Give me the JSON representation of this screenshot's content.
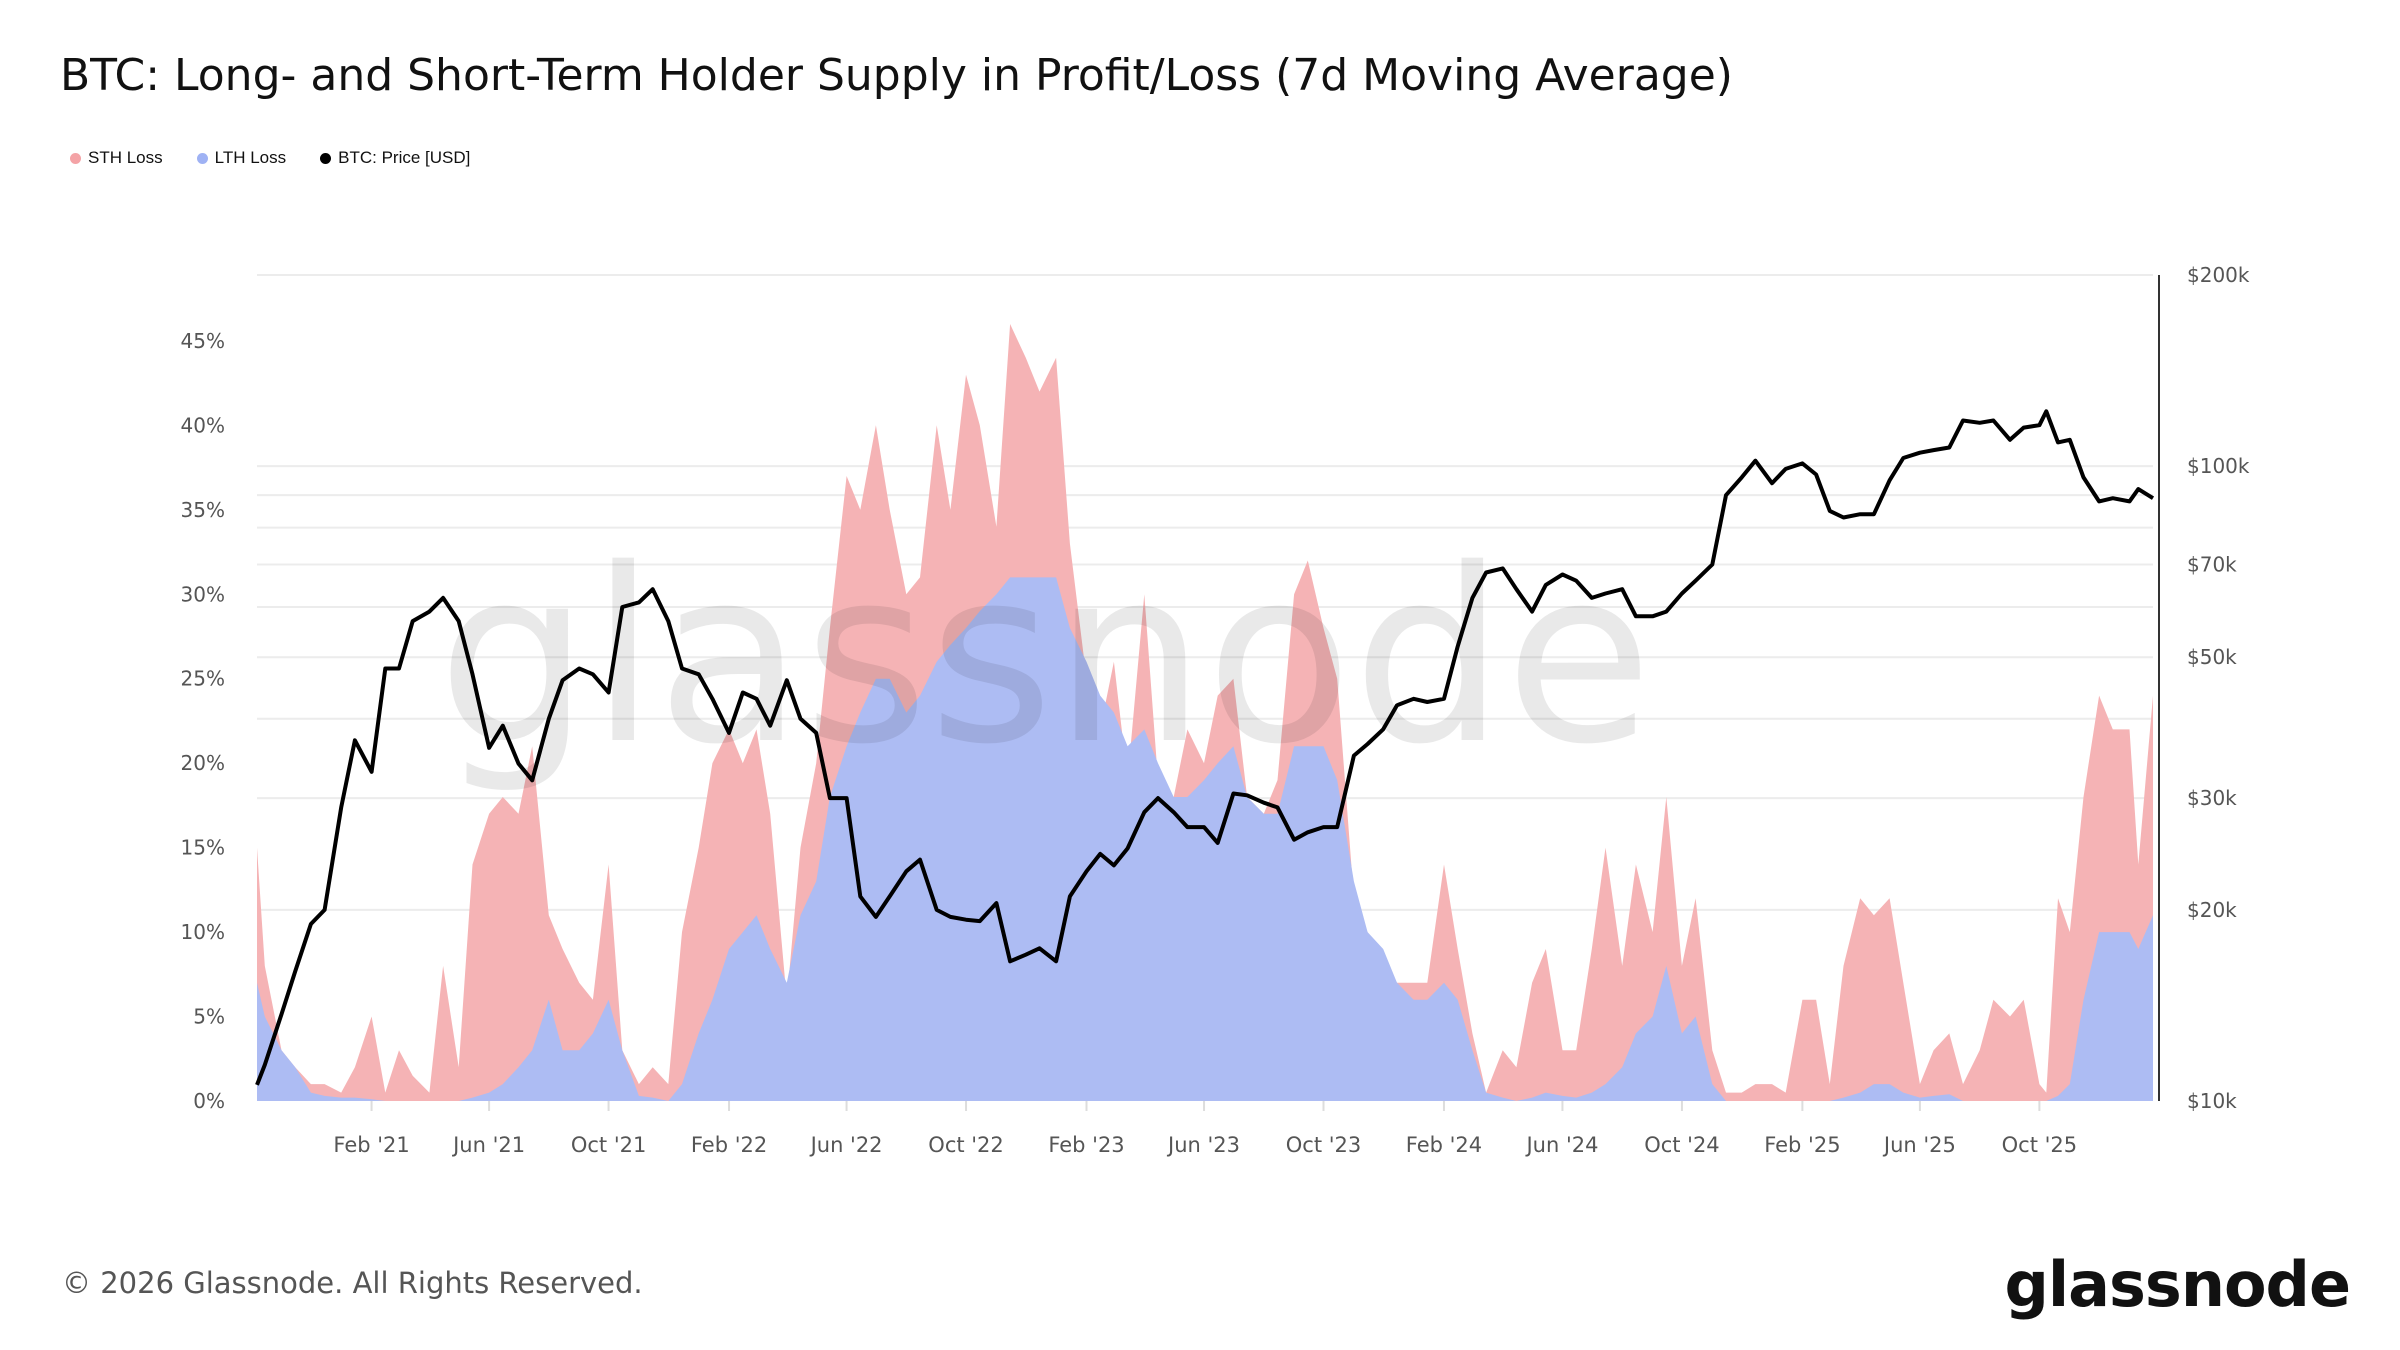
{
  "title": "BTC: Long- and Short-Term Holder Supply in Profit/Loss (7d Moving Average)",
  "legend": [
    {
      "label": "STH Loss",
      "color": "#f4a3a6"
    },
    {
      "label": "LTH Loss",
      "color": "#9fb2f4"
    },
    {
      "label": "BTC: Price [USD]",
      "color": "#000000"
    }
  ],
  "footer": "© 2026 Glassnode. All Rights Reserved.",
  "logo": "glassnode",
  "watermark": "glassnode",
  "chart_data": {
    "type": "area",
    "title": "BTC: Long- and Short-Term Holder Supply in Profit/Loss (7d Moving Average)",
    "x_range": [
      "2020-10-07",
      "2026-01-25"
    ],
    "x_ticks": [
      {
        "date": "2021-02-01",
        "label": "Feb '21"
      },
      {
        "date": "2021-06-01",
        "label": "Jun '21"
      },
      {
        "date": "2021-10-01",
        "label": "Oct '21"
      },
      {
        "date": "2022-02-01",
        "label": "Feb '22"
      },
      {
        "date": "2022-06-01",
        "label": "Jun '22"
      },
      {
        "date": "2022-10-01",
        "label": "Oct '22"
      },
      {
        "date": "2023-02-01",
        "label": "Feb '23"
      },
      {
        "date": "2023-06-01",
        "label": "Jun '23"
      },
      {
        "date": "2023-10-01",
        "label": "Oct '23"
      },
      {
        "date": "2024-02-01",
        "label": "Feb '24"
      },
      {
        "date": "2024-06-01",
        "label": "Jun '24"
      },
      {
        "date": "2024-10-01",
        "label": "Oct '24"
      },
      {
        "date": "2025-02-01",
        "label": "Feb '25"
      },
      {
        "date": "2025-06-01",
        "label": "Jun '25"
      },
      {
        "date": "2025-10-01",
        "label": "Oct '25"
      }
    ],
    "y_left": {
      "scale": "linear",
      "range": [
        0,
        48.9
      ],
      "ticks": [
        0,
        5,
        10,
        15,
        20,
        25,
        30,
        35,
        40,
        45
      ],
      "tick_labels": [
        "0%",
        "5%",
        "10%",
        "15%",
        "20%",
        "25%",
        "30%",
        "35%",
        "40%",
        "45%"
      ]
    },
    "y_right": {
      "scale": "log",
      "range": [
        10000,
        200000
      ],
      "ticks": [
        10000,
        20000,
        30000,
        50000,
        70000,
        100000,
        200000
      ],
      "tick_labels": [
        "$10k",
        "$20k",
        "$30k",
        "$50k",
        "$70k",
        "$100k",
        "$200k"
      ],
      "grid": [
        20000,
        30000,
        40000,
        50000,
        60000,
        70000,
        80000,
        90000,
        100000,
        200000
      ]
    },
    "grid": true,
    "legend_position": "top-left",
    "x": [
      "2020-10-07",
      "2020-10-15",
      "2020-11-01",
      "2020-11-15",
      "2020-12-01",
      "2020-12-15",
      "2021-01-01",
      "2021-01-15",
      "2021-02-01",
      "2021-02-15",
      "2021-03-01",
      "2021-03-15",
      "2021-04-01",
      "2021-04-15",
      "2021-05-01",
      "2021-05-15",
      "2021-06-01",
      "2021-06-15",
      "2021-07-01",
      "2021-07-15",
      "2021-08-01",
      "2021-08-15",
      "2021-09-01",
      "2021-09-15",
      "2021-10-01",
      "2021-10-15",
      "2021-11-01",
      "2021-11-15",
      "2021-12-01",
      "2021-12-15",
      "2022-01-01",
      "2022-01-15",
      "2022-02-01",
      "2022-02-15",
      "2022-03-01",
      "2022-03-15",
      "2022-04-01",
      "2022-04-15",
      "2022-05-01",
      "2022-05-15",
      "2022-06-01",
      "2022-06-15",
      "2022-07-01",
      "2022-07-15",
      "2022-08-01",
      "2022-08-15",
      "2022-09-01",
      "2022-09-15",
      "2022-10-01",
      "2022-10-15",
      "2022-11-01",
      "2022-11-15",
      "2022-12-01",
      "2022-12-15",
      "2023-01-01",
      "2023-01-15",
      "2023-02-01",
      "2023-02-15",
      "2023-03-01",
      "2023-03-15",
      "2023-04-01",
      "2023-04-15",
      "2023-05-01",
      "2023-05-15",
      "2023-06-01",
      "2023-06-15",
      "2023-07-01",
      "2023-07-15",
      "2023-08-01",
      "2023-08-15",
      "2023-09-01",
      "2023-09-15",
      "2023-10-01",
      "2023-10-15",
      "2023-11-01",
      "2023-11-15",
      "2023-12-01",
      "2023-12-15",
      "2024-01-01",
      "2024-01-15",
      "2024-02-01",
      "2024-02-15",
      "2024-03-01",
      "2024-03-15",
      "2024-04-01",
      "2024-04-15",
      "2024-05-01",
      "2024-05-15",
      "2024-06-01",
      "2024-06-15",
      "2024-07-01",
      "2024-07-15",
      "2024-08-01",
      "2024-08-15",
      "2024-09-01",
      "2024-09-15",
      "2024-10-01",
      "2024-10-15",
      "2024-11-01",
      "2024-11-15",
      "2024-12-01",
      "2024-12-15",
      "2025-01-01",
      "2025-01-15",
      "2025-02-01",
      "2025-02-15",
      "2025-03-01",
      "2025-03-15",
      "2025-04-01",
      "2025-04-15",
      "2025-05-01",
      "2025-05-15",
      "2025-06-01",
      "2025-06-15",
      "2025-07-01",
      "2025-07-15",
      "2025-08-01",
      "2025-08-15",
      "2025-09-01",
      "2025-09-15",
      "2025-10-01",
      "2025-10-08",
      "2025-10-20",
      "2025-11-01",
      "2025-11-15",
      "2025-12-01",
      "2025-12-15",
      "2026-01-01",
      "2026-01-10",
      "2026-01-25"
    ],
    "series": [
      {
        "name": "STH Loss",
        "axis": "left",
        "unit": "%",
        "color": "#f5b3b5",
        "values": [
          15,
          8,
          3,
          2,
          1,
          1,
          0.5,
          2,
          5,
          0.5,
          3,
          1.5,
          0.5,
          8,
          2,
          14,
          17,
          18,
          17,
          21,
          11,
          9,
          7,
          6,
          14,
          3,
          1,
          2,
          1,
          10,
          15,
          20,
          22,
          20,
          22,
          17,
          6,
          15,
          20,
          28,
          37,
          35,
          40,
          35,
          30,
          31,
          40,
          35,
          43,
          40,
          34,
          46,
          44,
          42,
          44,
          33,
          25,
          22,
          26,
          19,
          30,
          19,
          18,
          22,
          20,
          24,
          25,
          18,
          17,
          19,
          30,
          32,
          28,
          25,
          12,
          10,
          8,
          7,
          7,
          7,
          14,
          9,
          4,
          0.5,
          3,
          2,
          7,
          9,
          3,
          3,
          9,
          15,
          8,
          14,
          10,
          18,
          8,
          12,
          3,
          0.5,
          0.5,
          1,
          1,
          0.5,
          6,
          6,
          1,
          8,
          12,
          11,
          12,
          7,
          1,
          3,
          4,
          1,
          3,
          6,
          5,
          6,
          1,
          0.5,
          12,
          10,
          18,
          24,
          22,
          22,
          14,
          24
        ]
      },
      {
        "name": "LTH Loss",
        "axis": "left",
        "unit": "%",
        "color": "#adbcf3",
        "values": [
          7,
          5,
          3,
          2,
          0.5,
          0.3,
          0.2,
          0.2,
          0.1,
          0,
          0,
          0,
          0,
          0,
          0,
          0.2,
          0.5,
          1,
          2,
          3,
          6,
          3,
          3,
          4,
          6,
          3,
          0.3,
          0.2,
          0,
          1,
          4,
          6,
          9,
          10,
          11,
          9,
          7,
          11,
          13,
          18,
          21,
          23,
          25,
          25,
          23,
          24,
          26,
          27,
          28,
          29,
          30,
          31,
          31,
          31,
          31,
          28,
          26,
          24,
          23,
          21,
          22,
          20,
          18,
          18,
          19,
          20,
          21,
          18,
          17,
          17,
          21,
          21,
          21,
          19,
          13,
          10,
          9,
          7,
          6,
          6,
          7,
          6,
          3,
          0.5,
          0.2,
          0,
          0.2,
          0.5,
          0.3,
          0.2,
          0.5,
          1,
          2,
          4,
          5,
          8,
          4,
          5,
          1,
          0,
          0,
          0,
          0,
          0,
          0,
          0,
          0,
          0.2,
          0.5,
          1,
          1,
          0.5,
          0.2,
          0.3,
          0.4,
          0,
          0,
          0,
          0,
          0,
          0,
          0,
          0.3,
          1,
          6,
          10,
          10,
          10,
          9,
          11
        ]
      },
      {
        "name": "BTC: Price [USD]",
        "axis": "right",
        "unit": "USD",
        "color": "#000000",
        "values": [
          10600,
          11400,
          13700,
          16000,
          19000,
          20000,
          29000,
          37000,
          33000,
          48000,
          48000,
          57000,
          59000,
          62000,
          57000,
          47000,
          36000,
          39000,
          34000,
          32000,
          40000,
          46000,
          48000,
          47000,
          44000,
          60000,
          61000,
          64000,
          57000,
          48000,
          47000,
          43000,
          38000,
          44000,
          43000,
          39000,
          46000,
          40000,
          38000,
          30000,
          30000,
          21000,
          19500,
          21000,
          23000,
          24000,
          20000,
          19500,
          19300,
          19200,
          20500,
          16600,
          17000,
          17400,
          16600,
          21000,
          23000,
          24500,
          23500,
          25000,
          28500,
          30000,
          28500,
          27000,
          27000,
          25500,
          30500,
          30300,
          29500,
          29000,
          25800,
          26500,
          27000,
          27000,
          35000,
          36500,
          38500,
          42000,
          43000,
          42500,
          43000,
          52000,
          62000,
          68000,
          69000,
          64000,
          59000,
          65000,
          67500,
          66000,
          62000,
          63000,
          64000,
          58000,
          58000,
          59000,
          63000,
          66000,
          70000,
          90000,
          96000,
          102000,
          94000,
          99000,
          101000,
          97000,
          85000,
          83000,
          84000,
          84000,
          95000,
          103000,
          105000,
          106000,
          107000,
          118000,
          117000,
          118000,
          110000,
          115000,
          116000,
          122000,
          109000,
          110000,
          96000,
          88000,
          89000,
          88000,
          92000,
          89000
        ]
      }
    ]
  }
}
